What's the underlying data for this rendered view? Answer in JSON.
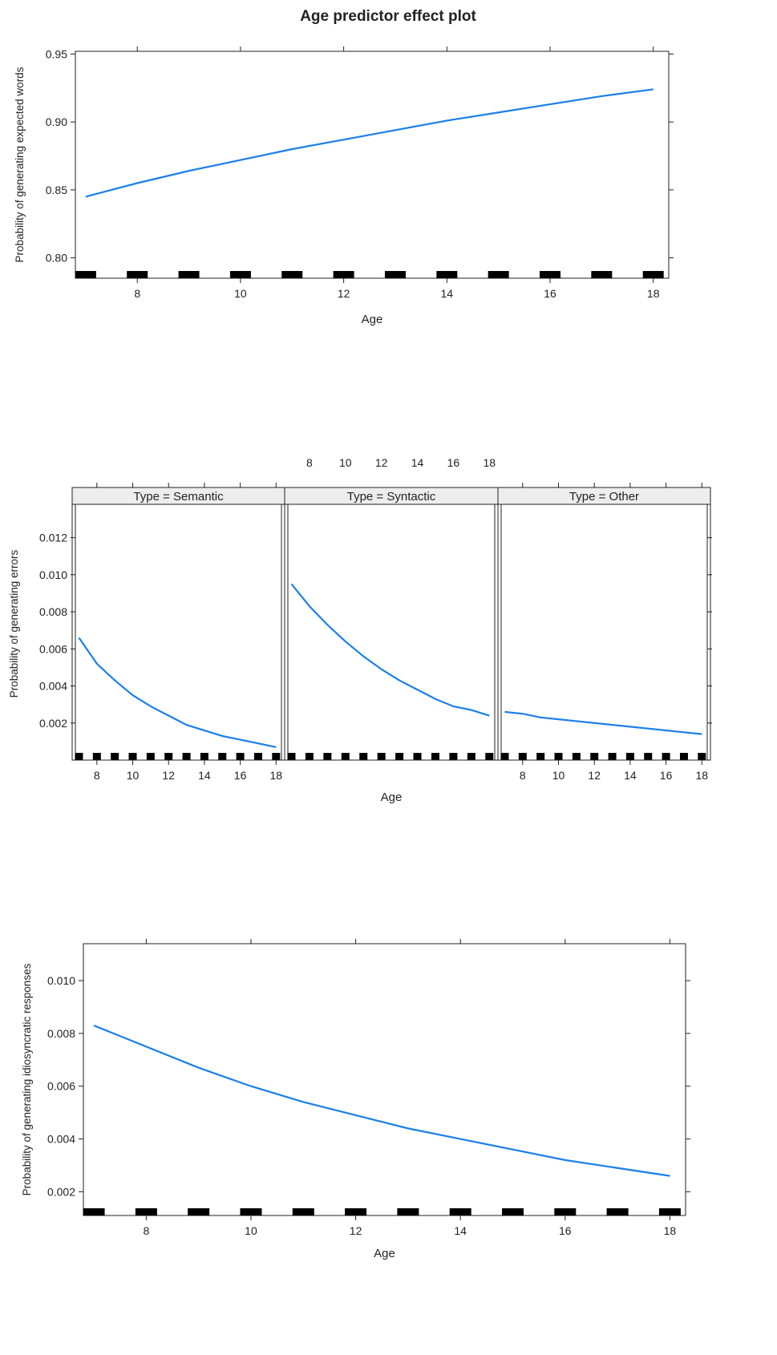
{
  "title": "Age predictor effect plot",
  "colors": {
    "line": "#1a7fe8",
    "rug": "#000000",
    "strip_fill": "#ededed",
    "axis": "#222222"
  },
  "chart_data": [
    {
      "type": "line",
      "xlabel": "Age",
      "ylabel": "Probability of generating expected words",
      "xlim": [
        6.8,
        18.3
      ],
      "ylim": [
        0.785,
        0.952
      ],
      "x_ticks": [
        8,
        10,
        12,
        14,
        16,
        18
      ],
      "y_ticks": [
        0.8,
        0.85,
        0.9,
        0.95
      ],
      "y_tick_labels": [
        "0.80",
        "0.85",
        "0.90",
        "0.95"
      ],
      "rug": [
        7,
        8,
        9,
        10,
        11,
        12,
        13,
        14,
        15,
        16,
        17,
        18
      ],
      "series": [
        {
          "x": [
            7,
            8,
            9,
            10,
            11,
            12,
            13,
            14,
            15,
            16,
            17,
            18
          ],
          "values": [
            0.845,
            0.855,
            0.864,
            0.872,
            0.88,
            0.887,
            0.894,
            0.901,
            0.907,
            0.913,
            0.919,
            0.924
          ]
        }
      ]
    },
    {
      "type": "line",
      "xlabel": "Age",
      "ylabel": "Probability of generating errors",
      "xlim": [
        6.8,
        18.3
      ],
      "ylim": [
        0.0,
        0.0138
      ],
      "x_ticks": [
        8,
        10,
        12,
        14,
        16,
        18
      ],
      "y_ticks": [
        0.002,
        0.004,
        0.006,
        0.008,
        0.01,
        0.012
      ],
      "y_tick_labels": [
        "0.002",
        "0.004",
        "0.006",
        "0.008",
        "0.010",
        "0.012"
      ],
      "rug": [
        7,
        8,
        9,
        10,
        11,
        12,
        13,
        14,
        15,
        16,
        17,
        18
      ],
      "panels": [
        {
          "strip": "Type = Semantic",
          "x": [
            7,
            8,
            9,
            10,
            11,
            12,
            13,
            14,
            15,
            16,
            17,
            18
          ],
          "values": [
            0.0066,
            0.0052,
            0.0043,
            0.0035,
            0.0029,
            0.0024,
            0.0019,
            0.0016,
            0.0013,
            0.0011,
            0.0009,
            0.0007
          ]
        },
        {
          "strip": "Type = Syntactic",
          "x": [
            7,
            8,
            9,
            10,
            11,
            12,
            13,
            14,
            15,
            16,
            17,
            18
          ],
          "values": [
            0.0095,
            0.0083,
            0.0073,
            0.0064,
            0.0056,
            0.0049,
            0.0043,
            0.0038,
            0.0033,
            0.0029,
            0.0027,
            0.0024
          ]
        },
        {
          "strip": "Type = Other",
          "x": [
            7,
            8,
            9,
            10,
            11,
            12,
            13,
            14,
            15,
            16,
            17,
            18
          ],
          "values": [
            0.0026,
            0.0025,
            0.0023,
            0.0022,
            0.0021,
            0.002,
            0.0019,
            0.0018,
            0.0017,
            0.0016,
            0.0015,
            0.0014
          ]
        }
      ]
    },
    {
      "type": "line",
      "xlabel": "Age",
      "ylabel": "Probability of generating idiosyncratic responses",
      "xlim": [
        6.8,
        18.3
      ],
      "ylim": [
        0.0011,
        0.0114
      ],
      "x_ticks": [
        8,
        10,
        12,
        14,
        16,
        18
      ],
      "y_ticks": [
        0.002,
        0.004,
        0.006,
        0.008,
        0.01
      ],
      "y_tick_labels": [
        "0.002",
        "0.004",
        "0.006",
        "0.008",
        "0.010"
      ],
      "rug": [
        7,
        8,
        9,
        10,
        11,
        12,
        13,
        14,
        15,
        16,
        17,
        18
      ],
      "series": [
        {
          "x": [
            7,
            8,
            9,
            10,
            11,
            12,
            13,
            14,
            15,
            16,
            17,
            18
          ],
          "values": [
            0.0083,
            0.0075,
            0.0067,
            0.006,
            0.0054,
            0.0049,
            0.0044,
            0.004,
            0.0036,
            0.0032,
            0.0029,
            0.0026
          ]
        }
      ]
    }
  ]
}
